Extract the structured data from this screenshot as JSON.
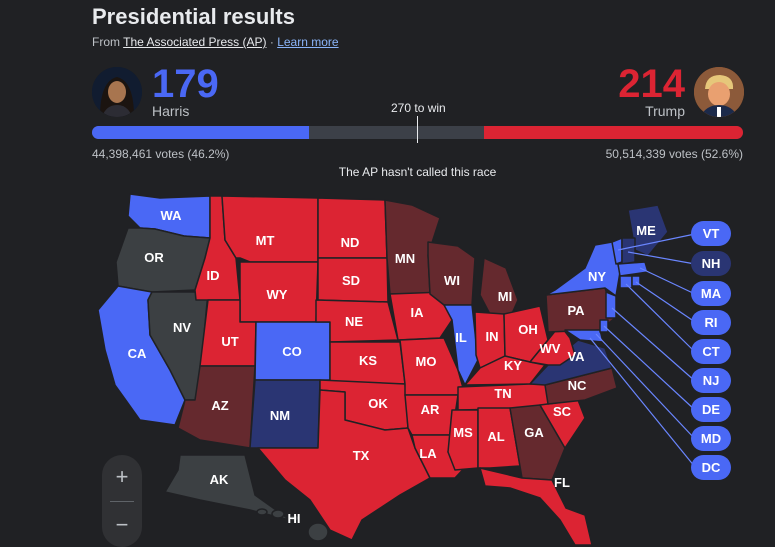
{
  "header": {
    "title": "Presidential results",
    "source_prefix": "From ",
    "source_link": "The Associated Press (AP)",
    "separator": " · ",
    "learn_more": "Learn more"
  },
  "candidates": {
    "harris": {
      "name": "Harris",
      "electoral_votes": "179",
      "votes_text": "44,398,461 votes (46.2%)",
      "color": "#4a68f5",
      "share_of_538": 0.3327
    },
    "trump": {
      "name": "Trump",
      "electoral_votes": "214",
      "votes_text": "50,514,339 votes (52.6%)",
      "color": "#dc2433",
      "share_of_538": 0.3978
    }
  },
  "threshold_label": "270 to win",
  "status_text": "The AP hasn't called this race",
  "legend_colors": {
    "harris_called": "#4a68f5",
    "trump_called": "#dc2433",
    "harris_leading": "#2a3573",
    "trump_leading": "#65292e",
    "no_results": "#3c4043"
  },
  "map_labels": {
    "WA": "WA",
    "OR": "OR",
    "CA": "CA",
    "NV": "NV",
    "ID": "ID",
    "MT": "MT",
    "WY": "WY",
    "UT": "UT",
    "AZ": "AZ",
    "CO": "CO",
    "NM": "NM",
    "ND": "ND",
    "SD": "SD",
    "NE": "NE",
    "KS": "KS",
    "OK": "OK",
    "TX": "TX",
    "MN": "MN",
    "IA": "IA",
    "MO": "MO",
    "AR": "AR",
    "LA": "LA",
    "WI": "WI",
    "IL": "IL",
    "MI": "MI",
    "IN": "IN",
    "OH": "OH",
    "KY": "KY",
    "TN": "TN",
    "MS": "MS",
    "AL": "AL",
    "GA": "GA",
    "FL": "FL",
    "SC": "SC",
    "NC": "NC",
    "VA": "VA",
    "WV": "WV",
    "PA": "PA",
    "NY": "NY",
    "ME": "ME",
    "AK": "AK",
    "HI": "HI"
  },
  "small_states": [
    "VT",
    "NH",
    "MA",
    "RI",
    "CT",
    "NJ",
    "DE",
    "MD",
    "DC"
  ],
  "zoom": {
    "in": "+",
    "out": "−"
  }
}
